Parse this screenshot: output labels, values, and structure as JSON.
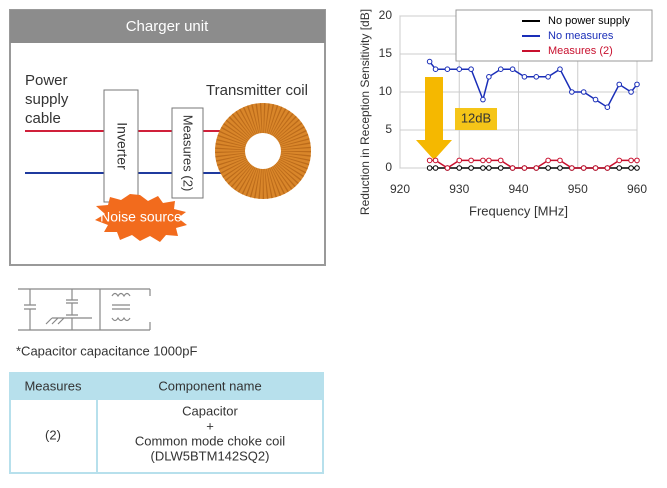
{
  "diagram": {
    "title": "Charger unit",
    "cable_label": [
      "Power",
      "supply",
      "cable"
    ],
    "inverter": "Inverter",
    "measures": "Measures (2)",
    "coil": "Transmitter coil",
    "noise": "Noise source",
    "note": "*Capacitor capacitance 1000pF"
  },
  "table": {
    "header": [
      "Measures",
      "Component name"
    ],
    "rows": [
      [
        "(2)",
        [
          "Capacitor",
          "+",
          "Common mode choke coil",
          "(DLW5BTM142SQ2)"
        ]
      ]
    ]
  },
  "chart_data": {
    "type": "line",
    "xlabel": "Frequency [MHz]",
    "ylabel": "Reduction in Reception Sensitivity [dB]",
    "x": [
      925,
      926,
      928,
      930,
      932,
      934,
      935,
      937,
      939,
      941,
      943,
      945,
      947,
      949,
      951,
      953,
      955,
      957,
      959,
      960
    ],
    "series": [
      {
        "name": "No power supply",
        "color": "#000000",
        "values": [
          0,
          0,
          0,
          0,
          0,
          0,
          0,
          0,
          0,
          0,
          0,
          0,
          0,
          0,
          0,
          0,
          0,
          0,
          0,
          0
        ]
      },
      {
        "name": "No measures",
        "color": "#1a2eb8",
        "values": [
          14,
          13,
          13,
          13,
          13,
          9,
          12,
          13,
          13,
          12,
          12,
          12,
          13,
          10,
          10,
          9,
          8,
          11,
          10,
          11
        ]
      },
      {
        "name": "Measures (2)",
        "color": "#c8102e",
        "values": [
          1,
          1,
          0,
          1,
          1,
          1,
          1,
          1,
          0,
          0,
          0,
          1,
          1,
          0,
          0,
          0,
          0,
          1,
          1,
          1
        ]
      }
    ],
    "xlim": [
      920,
      960
    ],
    "xticks": [
      920,
      930,
      940,
      950,
      960
    ],
    "ylim": [
      0,
      20
    ],
    "yticks": [
      0,
      5,
      10,
      15,
      20
    ],
    "grid": true,
    "legend": "upper right",
    "annotation": "12dB"
  }
}
